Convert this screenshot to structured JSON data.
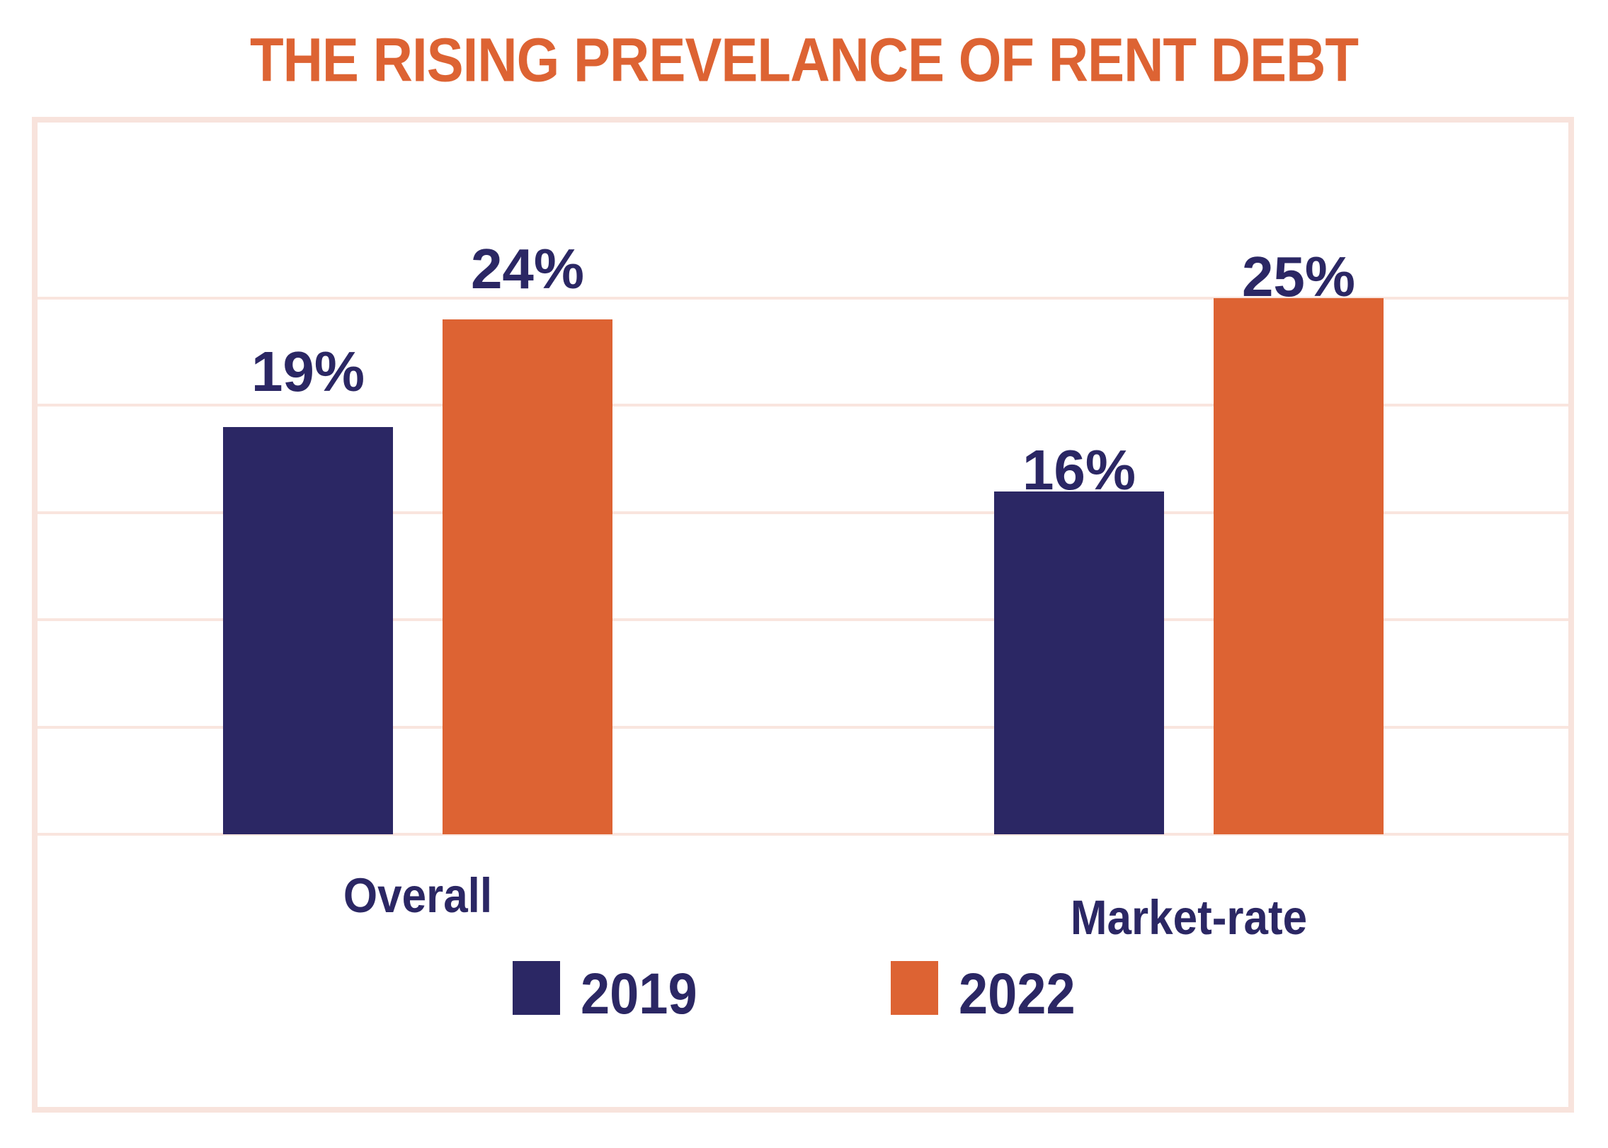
{
  "chart_data": {
    "type": "bar",
    "title": "THE RISING PREVELANCE OF RENT DEBT",
    "categories": [
      "Overall",
      "Market-rate"
    ],
    "series": [
      {
        "name": "2019",
        "values": [
          19,
          16
        ],
        "color": "#2b2764"
      },
      {
        "name": "2022",
        "values": [
          24,
          25
        ],
        "color": "#dd6333"
      }
    ],
    "value_label_format": "{v}%",
    "value_labels": [
      [
        "19%",
        "16%"
      ],
      [
        "24%",
        "25%"
      ]
    ],
    "xlabel": "",
    "ylabel": "",
    "ylim": [
      0,
      30
    ],
    "gridline_values": [
      0,
      5,
      10,
      15,
      20,
      25
    ],
    "grid": true,
    "y_tick_labels_visible": false,
    "legend_position": "bottom-center",
    "legend_items": [
      "2019",
      "2022"
    ]
  },
  "colors": {
    "title": "#dd6333",
    "navy": "#2b2764",
    "orange": "#dd6333",
    "frame_border": "#f8e3dc",
    "gridline": "#f9e5de",
    "background": "#ffffff",
    "label_text": "#2b2764"
  }
}
